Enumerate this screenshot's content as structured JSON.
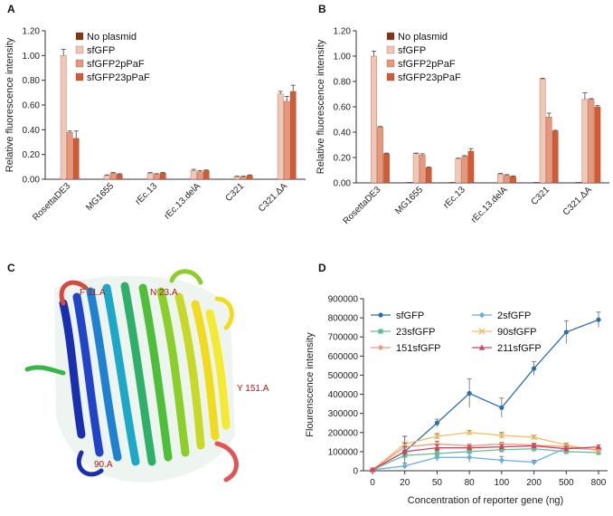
{
  "panels": {
    "A": {
      "label": "A"
    },
    "B": {
      "label": "B"
    },
    "C": {
      "label": "C",
      "residue_labels": [
        "F 11.A",
        "N 23.A",
        "Y 151.A",
        "90.A"
      ]
    },
    "D": {
      "label": "D"
    }
  },
  "colors": {
    "No plasmid": "#7a3818",
    "sfGFP": "#f3c6b4",
    "sfGFP2pPaF": "#e7977a",
    "sfGFP23pPaF": "#d25a35"
  },
  "chart_data": [
    {
      "panel": "A",
      "type": "bar",
      "ylabel": "Relative fluorescence intensity",
      "xlabel": "",
      "ylim": [
        0,
        1.2
      ],
      "yticks": [
        "0.00",
        "0.20",
        "0.40",
        "0.60",
        "0.80",
        "1.00",
        "1.20"
      ],
      "categories": [
        "RosettaDE3",
        "MG1655",
        "rEc.13",
        "rEc.13.delA",
        "C321",
        "C321.ΔA"
      ],
      "legend_position": "top-left",
      "series": [
        {
          "name": "No plasmid",
          "values": [
            0.0,
            0.0,
            0.0,
            0.0,
            0.0,
            0.0
          ],
          "errors": [
            0,
            0,
            0,
            0,
            0,
            0
          ]
        },
        {
          "name": "sfGFP",
          "values": [
            1.0,
            0.03,
            0.05,
            0.07,
            0.02,
            0.69
          ],
          "errors": [
            0.05,
            0.005,
            0.005,
            0.01,
            0.005,
            0.02
          ]
        },
        {
          "name": "sfGFP2pPaF",
          "values": [
            0.38,
            0.05,
            0.04,
            0.06,
            0.02,
            0.63
          ],
          "errors": [
            0.01,
            0.005,
            0.005,
            0.01,
            0.005,
            0.04
          ]
        },
        {
          "name": "sfGFP23pPaF",
          "values": [
            0.33,
            0.04,
            0.05,
            0.07,
            0.03,
            0.71
          ],
          "errors": [
            0.06,
            0.005,
            0.005,
            0.005,
            0.005,
            0.05
          ]
        }
      ]
    },
    {
      "panel": "B",
      "type": "bar",
      "ylabel": "Relative fluorescence intensity",
      "xlabel": "",
      "ylim": [
        0,
        1.2
      ],
      "yticks": [
        "0.00",
        "0.20",
        "0.40",
        "0.60",
        "0.80",
        "1.00",
        "1.20"
      ],
      "categories": [
        "RosettaDE3",
        "MG1655",
        "rEc.13",
        "rEc.13.delA",
        "C321",
        "C321.ΔA"
      ],
      "legend_position": "top-left",
      "series": [
        {
          "name": "No plasmid",
          "values": [
            0.0,
            0.005,
            0.005,
            0.0,
            0.005,
            0.005
          ],
          "errors": [
            0,
            0,
            0,
            0,
            0,
            0
          ]
        },
        {
          "name": "sfGFP",
          "values": [
            1.0,
            0.23,
            0.19,
            0.07,
            0.82,
            0.66
          ],
          "errors": [
            0.04,
            0.005,
            0.005,
            0.005,
            0.005,
            0.05
          ]
        },
        {
          "name": "sfGFP2pPaF",
          "values": [
            0.44,
            0.22,
            0.21,
            0.06,
            0.52,
            0.66
          ],
          "errors": [
            0.005,
            0.01,
            0.005,
            0.005,
            0.03,
            0.005
          ]
        },
        {
          "name": "sfGFP23pPaF",
          "values": [
            0.23,
            0.12,
            0.25,
            0.05,
            0.41,
            0.6
          ],
          "errors": [
            0.005,
            0.005,
            0.02,
            0.005,
            0.005,
            0.01
          ]
        }
      ]
    },
    {
      "panel": "D",
      "type": "line",
      "ylabel": "Flourenscence intensity",
      "xlabel": "Concentration of reporter gene (ng)",
      "ylim": [
        0,
        900000
      ],
      "yticks": [
        "0",
        "100000",
        "200000",
        "300000",
        "400000",
        "500000",
        "600000",
        "700000",
        "800000",
        "900000"
      ],
      "x": [
        "0",
        "20",
        "50",
        "80",
        "100",
        "200",
        "500",
        "800"
      ],
      "legend_position": "top-left",
      "series": [
        {
          "name": "sfGFP",
          "color": "#2a6fb0",
          "marker": "circle",
          "values": [
            5000,
            100000,
            250000,
            405000,
            330000,
            535000,
            725000,
            790000
          ],
          "errors": [
            3000,
            80000,
            20000,
            75000,
            50000,
            35000,
            60000,
            40000
          ]
        },
        {
          "name": "2sfGFP",
          "color": "#6aaee0",
          "marker": "diamond",
          "values": [
            5000,
            25000,
            70000,
            70000,
            55000,
            45000,
            120000,
            110000
          ],
          "errors": [
            2000,
            15000,
            20000,
            25000,
            20000,
            10000,
            10000,
            10000
          ]
        },
        {
          "name": "23sfGFP",
          "color": "#5fbf96",
          "marker": "square",
          "values": [
            5000,
            80000,
            90000,
            100000,
            110000,
            115000,
            100000,
            95000
          ],
          "errors": [
            2000,
            20000,
            15000,
            15000,
            15000,
            15000,
            10000,
            10000
          ]
        },
        {
          "name": "90sfGFP",
          "color": "#f0c060",
          "marker": "x",
          "values": [
            5000,
            140000,
            180000,
            200000,
            185000,
            175000,
            135000,
            105000
          ],
          "errors": [
            2000,
            40000,
            15000,
            10000,
            15000,
            10000,
            10000,
            10000
          ]
        },
        {
          "name": "151sfGFP",
          "color": "#f09a80",
          "marker": "circle",
          "values": [
            5000,
            125000,
            140000,
            130000,
            140000,
            135000,
            125000,
            110000
          ],
          "errors": [
            2000,
            20000,
            15000,
            10000,
            10000,
            10000,
            10000,
            10000
          ]
        },
        {
          "name": "211sfGFP",
          "color": "#d84060",
          "marker": "triangle",
          "values": [
            5000,
            100000,
            120000,
            120000,
            125000,
            130000,
            115000,
            125000
          ],
          "errors": [
            2000,
            25000,
            15000,
            10000,
            10000,
            10000,
            10000,
            10000
          ]
        }
      ]
    }
  ]
}
